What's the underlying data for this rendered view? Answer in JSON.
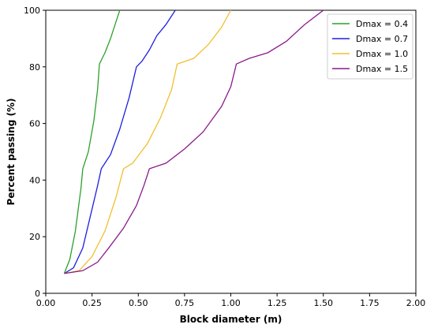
{
  "chart_data": {
    "type": "line",
    "title": "",
    "xlabel": "Block diameter (m)",
    "ylabel": "Percent passing (%)",
    "xlim": [
      0.0,
      2.0
    ],
    "ylim": [
      0,
      100
    ],
    "x_ticks": [
      "0.00",
      "0.25",
      "0.50",
      "0.75",
      "1.00",
      "1.25",
      "1.50",
      "1.75",
      "2.00"
    ],
    "y_ticks": [
      "0",
      "20",
      "40",
      "60",
      "80",
      "100"
    ],
    "grid": false,
    "legend_position": "top-right",
    "series": [
      {
        "name": "Dmax = 0.4",
        "color": "#2ca02c",
        "points": [
          [
            0.1,
            7
          ],
          [
            0.13,
            12
          ],
          [
            0.16,
            22
          ],
          [
            0.19,
            37
          ],
          [
            0.2,
            44
          ],
          [
            0.23,
            50
          ],
          [
            0.26,
            61
          ],
          [
            0.28,
            72
          ],
          [
            0.29,
            81
          ],
          [
            0.32,
            85
          ],
          [
            0.35,
            90
          ],
          [
            0.38,
            96
          ],
          [
            0.4,
            100
          ]
        ]
      },
      {
        "name": "Dmax = 0.7",
        "color": "#1f1fe0",
        "points": [
          [
            0.1,
            7
          ],
          [
            0.15,
            9
          ],
          [
            0.2,
            16
          ],
          [
            0.24,
            27
          ],
          [
            0.28,
            38
          ],
          [
            0.3,
            44
          ],
          [
            0.35,
            49
          ],
          [
            0.4,
            58
          ],
          [
            0.45,
            69
          ],
          [
            0.49,
            80
          ],
          [
            0.52,
            82
          ],
          [
            0.56,
            86
          ],
          [
            0.6,
            91
          ],
          [
            0.65,
            95
          ],
          [
            0.7,
            100
          ]
        ]
      },
      {
        "name": "Dmax = 1.0",
        "color": "#f0c030",
        "points": [
          [
            0.1,
            7
          ],
          [
            0.18,
            8
          ],
          [
            0.25,
            13
          ],
          [
            0.32,
            22
          ],
          [
            0.38,
            34
          ],
          [
            0.42,
            44
          ],
          [
            0.47,
            46
          ],
          [
            0.55,
            53
          ],
          [
            0.62,
            62
          ],
          [
            0.68,
            72
          ],
          [
            0.71,
            81
          ],
          [
            0.8,
            83
          ],
          [
            0.88,
            88
          ],
          [
            0.95,
            94
          ],
          [
            1.0,
            100
          ]
        ]
      },
      {
        "name": "Dmax = 1.5",
        "color": "#8b1a8b",
        "points": [
          [
            0.1,
            7
          ],
          [
            0.2,
            8
          ],
          [
            0.28,
            11
          ],
          [
            0.34,
            16
          ],
          [
            0.42,
            23
          ],
          [
            0.49,
            31
          ],
          [
            0.53,
            38
          ],
          [
            0.56,
            44
          ],
          [
            0.65,
            46
          ],
          [
            0.75,
            51
          ],
          [
            0.85,
            57
          ],
          [
            0.95,
            66
          ],
          [
            1.0,
            73
          ],
          [
            1.03,
            81
          ],
          [
            1.1,
            83
          ],
          [
            1.2,
            85
          ],
          [
            1.3,
            89
          ],
          [
            1.4,
            95
          ],
          [
            1.5,
            100
          ]
        ]
      }
    ]
  }
}
